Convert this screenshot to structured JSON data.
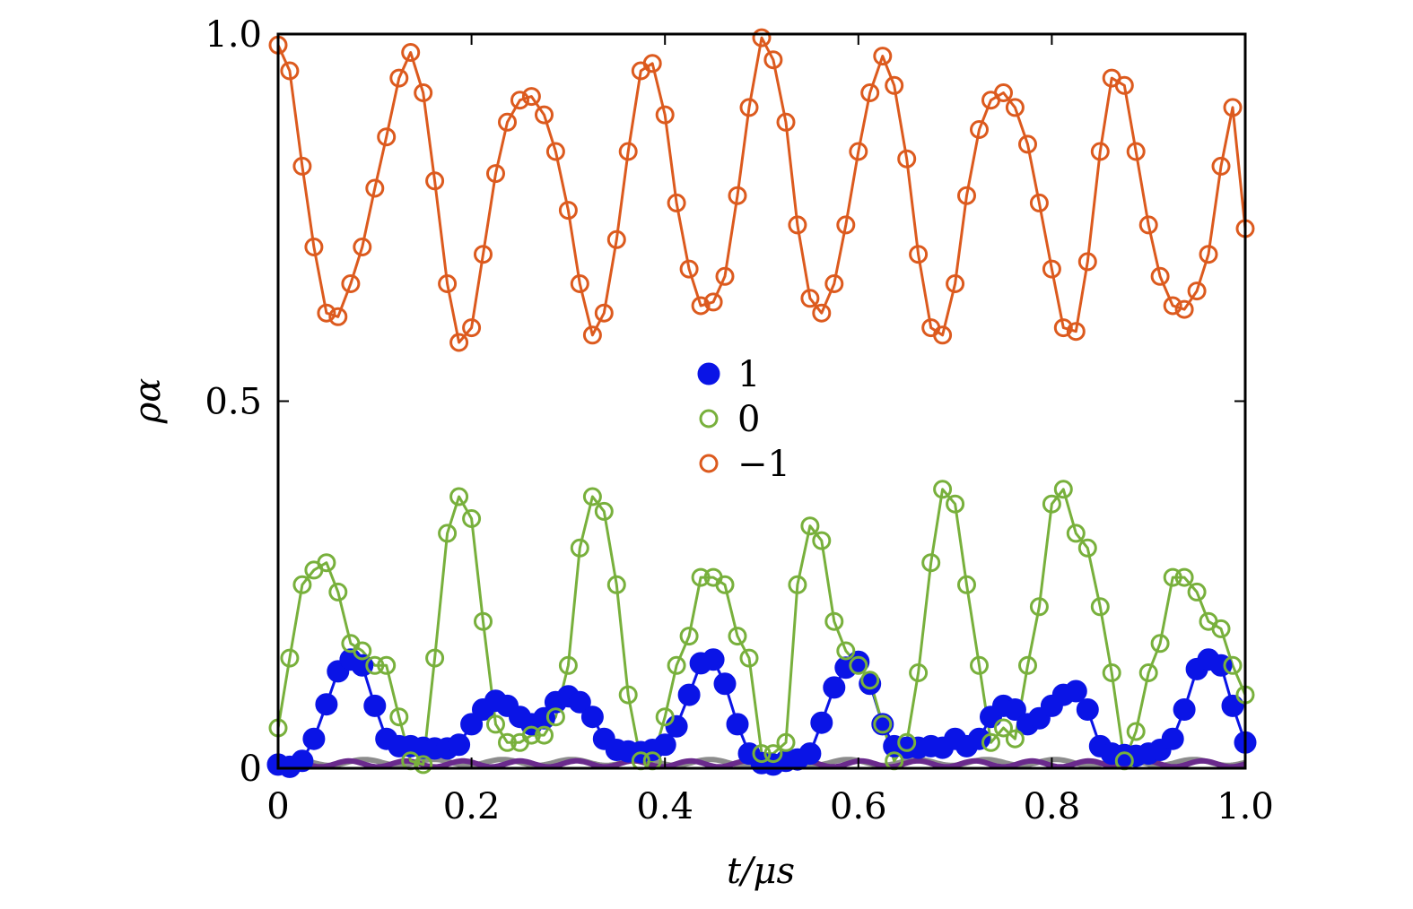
{
  "chart_data": {
    "type": "line",
    "title": "",
    "xlabel": "t/μs",
    "ylabel": "ρα",
    "xlim": [
      0,
      1.0
    ],
    "ylim": [
      0,
      1.0
    ],
    "x_ticks": [
      0,
      0.2,
      0.4,
      0.6,
      0.8,
      1.0
    ],
    "x_tick_labels": [
      "0",
      "0.2",
      "0.4",
      "0.6",
      "0.8",
      "1.0"
    ],
    "y_ticks": [
      0,
      0.5,
      1.0
    ],
    "y_tick_labels": [
      "0",
      "0.5",
      "1.0"
    ],
    "legend_position": "center",
    "grid": false,
    "series": [
      {
        "name": "1",
        "color": "#0a14e6",
        "marker": "filled-circle",
        "points": [
          [
            0.0,
            0.005
          ],
          [
            0.012,
            0.002
          ],
          [
            0.025,
            0.01
          ],
          [
            0.037,
            0.04
          ],
          [
            0.05,
            0.087
          ],
          [
            0.062,
            0.132
          ],
          [
            0.075,
            0.148
          ],
          [
            0.087,
            0.14
          ],
          [
            0.1,
            0.085
          ],
          [
            0.112,
            0.04
          ],
          [
            0.125,
            0.03
          ],
          [
            0.137,
            0.03
          ],
          [
            0.15,
            0.028
          ],
          [
            0.162,
            0.027
          ],
          [
            0.175,
            0.027
          ],
          [
            0.187,
            0.032
          ],
          [
            0.2,
            0.06
          ],
          [
            0.212,
            0.08
          ],
          [
            0.225,
            0.092
          ],
          [
            0.237,
            0.085
          ],
          [
            0.25,
            0.07
          ],
          [
            0.262,
            0.06
          ],
          [
            0.275,
            0.068
          ],
          [
            0.287,
            0.09
          ],
          [
            0.3,
            0.098
          ],
          [
            0.312,
            0.09
          ],
          [
            0.325,
            0.07
          ],
          [
            0.337,
            0.04
          ],
          [
            0.35,
            0.025
          ],
          [
            0.362,
            0.023
          ],
          [
            0.375,
            0.022
          ],
          [
            0.387,
            0.025
          ],
          [
            0.4,
            0.032
          ],
          [
            0.412,
            0.057
          ],
          [
            0.425,
            0.1
          ],
          [
            0.437,
            0.143
          ],
          [
            0.45,
            0.148
          ],
          [
            0.462,
            0.115
          ],
          [
            0.475,
            0.06
          ],
          [
            0.487,
            0.02
          ],
          [
            0.5,
            0.007
          ],
          [
            0.512,
            0.005
          ],
          [
            0.525,
            0.01
          ],
          [
            0.537,
            0.012
          ],
          [
            0.55,
            0.02
          ],
          [
            0.562,
            0.062
          ],
          [
            0.575,
            0.11
          ],
          [
            0.587,
            0.137
          ],
          [
            0.6,
            0.145
          ],
          [
            0.612,
            0.115
          ],
          [
            0.625,
            0.06
          ],
          [
            0.637,
            0.03
          ],
          [
            0.65,
            0.028
          ],
          [
            0.662,
            0.028
          ],
          [
            0.675,
            0.03
          ],
          [
            0.687,
            0.028
          ],
          [
            0.7,
            0.04
          ],
          [
            0.712,
            0.03
          ],
          [
            0.725,
            0.04
          ],
          [
            0.737,
            0.07
          ],
          [
            0.75,
            0.085
          ],
          [
            0.762,
            0.08
          ],
          [
            0.775,
            0.06
          ],
          [
            0.787,
            0.068
          ],
          [
            0.8,
            0.085
          ],
          [
            0.812,
            0.1
          ],
          [
            0.825,
            0.105
          ],
          [
            0.837,
            0.08
          ],
          [
            0.85,
            0.03
          ],
          [
            0.862,
            0.02
          ],
          [
            0.875,
            0.018
          ],
          [
            0.887,
            0.017
          ],
          [
            0.9,
            0.02
          ],
          [
            0.912,
            0.025
          ],
          [
            0.925,
            0.04
          ],
          [
            0.937,
            0.08
          ],
          [
            0.95,
            0.135
          ],
          [
            0.962,
            0.148
          ],
          [
            0.975,
            0.14
          ],
          [
            0.987,
            0.085
          ],
          [
            1.0,
            0.035
          ]
        ]
      },
      {
        "name": "0",
        "color": "#78b03c",
        "marker": "open-circle",
        "points": [
          [
            0.0,
            0.055
          ],
          [
            0.012,
            0.15
          ],
          [
            0.025,
            0.25
          ],
          [
            0.037,
            0.27
          ],
          [
            0.05,
            0.28
          ],
          [
            0.062,
            0.24
          ],
          [
            0.075,
            0.17
          ],
          [
            0.087,
            0.16
          ],
          [
            0.1,
            0.14
          ],
          [
            0.112,
            0.14
          ],
          [
            0.125,
            0.07
          ],
          [
            0.137,
            0.01
          ],
          [
            0.15,
            0.005
          ],
          [
            0.162,
            0.15
          ],
          [
            0.175,
            0.32
          ],
          [
            0.187,
            0.37
          ],
          [
            0.2,
            0.34
          ],
          [
            0.212,
            0.2
          ],
          [
            0.225,
            0.06
          ],
          [
            0.237,
            0.035
          ],
          [
            0.25,
            0.035
          ],
          [
            0.262,
            0.045
          ],
          [
            0.275,
            0.045
          ],
          [
            0.287,
            0.07
          ],
          [
            0.3,
            0.14
          ],
          [
            0.312,
            0.3
          ],
          [
            0.325,
            0.37
          ],
          [
            0.337,
            0.35
          ],
          [
            0.35,
            0.25
          ],
          [
            0.362,
            0.1
          ],
          [
            0.375,
            0.01
          ],
          [
            0.387,
            0.01
          ],
          [
            0.4,
            0.07
          ],
          [
            0.412,
            0.14
          ],
          [
            0.425,
            0.18
          ],
          [
            0.437,
            0.26
          ],
          [
            0.45,
            0.26
          ],
          [
            0.462,
            0.25
          ],
          [
            0.475,
            0.18
          ],
          [
            0.487,
            0.15
          ],
          [
            0.5,
            0.02
          ],
          [
            0.512,
            0.02
          ],
          [
            0.525,
            0.035
          ],
          [
            0.537,
            0.25
          ],
          [
            0.55,
            0.33
          ],
          [
            0.562,
            0.31
          ],
          [
            0.575,
            0.2
          ],
          [
            0.587,
            0.16
          ],
          [
            0.6,
            0.14
          ],
          [
            0.612,
            0.12
          ],
          [
            0.625,
            0.06
          ],
          [
            0.637,
            0.01
          ],
          [
            0.65,
            0.035
          ],
          [
            0.662,
            0.13
          ],
          [
            0.675,
            0.28
          ],
          [
            0.687,
            0.38
          ],
          [
            0.7,
            0.36
          ],
          [
            0.712,
            0.25
          ],
          [
            0.725,
            0.14
          ],
          [
            0.737,
            0.035
          ],
          [
            0.75,
            0.055
          ],
          [
            0.762,
            0.04
          ],
          [
            0.775,
            0.14
          ],
          [
            0.787,
            0.22
          ],
          [
            0.8,
            0.36
          ],
          [
            0.812,
            0.38
          ],
          [
            0.825,
            0.32
          ],
          [
            0.837,
            0.3
          ],
          [
            0.85,
            0.22
          ],
          [
            0.862,
            0.13
          ],
          [
            0.875,
            0.01
          ],
          [
            0.887,
            0.05
          ],
          [
            0.9,
            0.13
          ],
          [
            0.912,
            0.17
          ],
          [
            0.925,
            0.26
          ],
          [
            0.937,
            0.26
          ],
          [
            0.95,
            0.24
          ],
          [
            0.962,
            0.2
          ],
          [
            0.975,
            0.19
          ],
          [
            0.987,
            0.14
          ],
          [
            1.0,
            0.1
          ]
        ]
      },
      {
        "name": "−1",
        "color": "#dc5a1e",
        "marker": "open-circle",
        "points": [
          [
            0.0,
            0.985
          ],
          [
            0.012,
            0.95
          ],
          [
            0.025,
            0.82
          ],
          [
            0.037,
            0.71
          ],
          [
            0.05,
            0.62
          ],
          [
            0.062,
            0.615
          ],
          [
            0.075,
            0.66
          ],
          [
            0.087,
            0.71
          ],
          [
            0.1,
            0.79
          ],
          [
            0.112,
            0.86
          ],
          [
            0.125,
            0.94
          ],
          [
            0.137,
            0.975
          ],
          [
            0.15,
            0.92
          ],
          [
            0.162,
            0.8
          ],
          [
            0.175,
            0.66
          ],
          [
            0.187,
            0.58
          ],
          [
            0.2,
            0.6
          ],
          [
            0.212,
            0.7
          ],
          [
            0.225,
            0.81
          ],
          [
            0.237,
            0.88
          ],
          [
            0.25,
            0.91
          ],
          [
            0.262,
            0.915
          ],
          [
            0.275,
            0.89
          ],
          [
            0.287,
            0.84
          ],
          [
            0.3,
            0.76
          ],
          [
            0.312,
            0.66
          ],
          [
            0.325,
            0.59
          ],
          [
            0.337,
            0.62
          ],
          [
            0.35,
            0.72
          ],
          [
            0.362,
            0.84
          ],
          [
            0.375,
            0.95
          ],
          [
            0.387,
            0.96
          ],
          [
            0.4,
            0.89
          ],
          [
            0.412,
            0.77
          ],
          [
            0.425,
            0.68
          ],
          [
            0.437,
            0.63
          ],
          [
            0.45,
            0.635
          ],
          [
            0.462,
            0.67
          ],
          [
            0.475,
            0.78
          ],
          [
            0.487,
            0.9
          ],
          [
            0.5,
            0.995
          ],
          [
            0.512,
            0.965
          ],
          [
            0.525,
            0.88
          ],
          [
            0.537,
            0.74
          ],
          [
            0.55,
            0.64
          ],
          [
            0.562,
            0.62
          ],
          [
            0.575,
            0.66
          ],
          [
            0.587,
            0.74
          ],
          [
            0.6,
            0.84
          ],
          [
            0.612,
            0.92
          ],
          [
            0.625,
            0.97
          ],
          [
            0.637,
            0.93
          ],
          [
            0.65,
            0.83
          ],
          [
            0.662,
            0.7
          ],
          [
            0.675,
            0.6
          ],
          [
            0.687,
            0.59
          ],
          [
            0.7,
            0.66
          ],
          [
            0.712,
            0.78
          ],
          [
            0.725,
            0.87
          ],
          [
            0.737,
            0.91
          ],
          [
            0.75,
            0.92
          ],
          [
            0.762,
            0.9
          ],
          [
            0.775,
            0.85
          ],
          [
            0.787,
            0.77
          ],
          [
            0.8,
            0.68
          ],
          [
            0.812,
            0.6
          ],
          [
            0.825,
            0.595
          ],
          [
            0.837,
            0.69
          ],
          [
            0.85,
            0.84
          ],
          [
            0.862,
            0.94
          ],
          [
            0.875,
            0.93
          ],
          [
            0.887,
            0.84
          ],
          [
            0.9,
            0.74
          ],
          [
            0.912,
            0.67
          ],
          [
            0.925,
            0.63
          ],
          [
            0.937,
            0.625
          ],
          [
            0.95,
            0.65
          ],
          [
            0.962,
            0.7
          ],
          [
            0.975,
            0.82
          ],
          [
            0.987,
            0.9
          ],
          [
            1.0,
            0.735
          ]
        ]
      }
    ],
    "background_curves": [
      {
        "color": "#8c8c8c",
        "level": 0.008
      },
      {
        "color": "#6a2a8c",
        "level": 0.006
      }
    ]
  }
}
